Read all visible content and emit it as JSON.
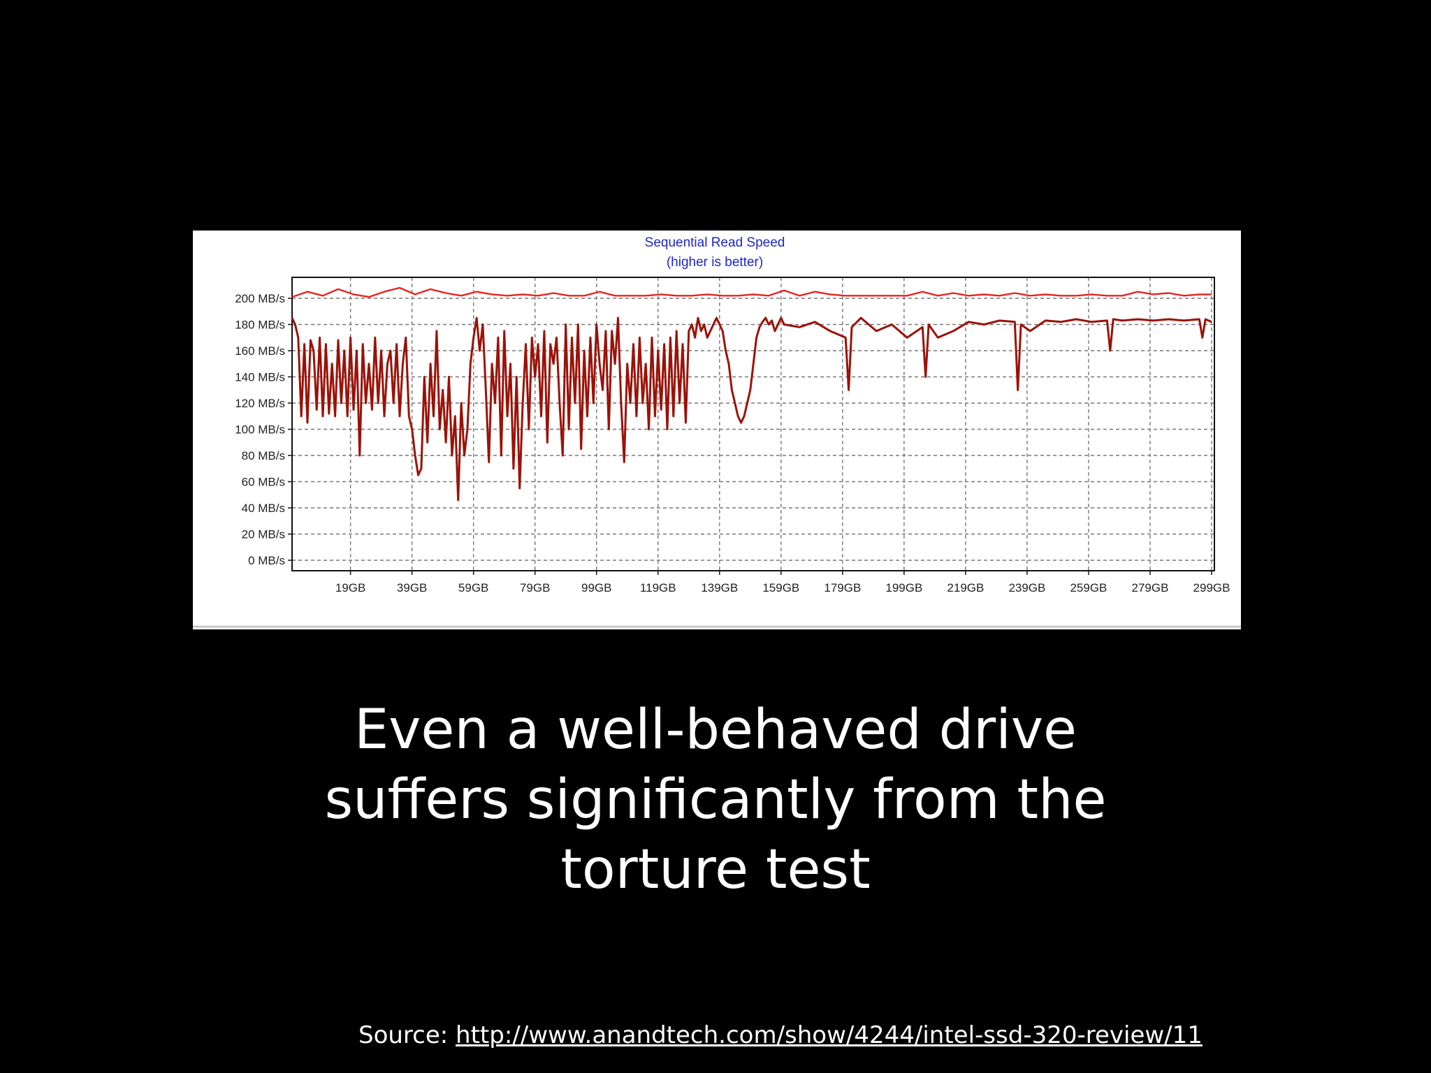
{
  "slide": {
    "caption_lines": [
      "Even a well-behaved drive",
      "suffers significantly from the",
      "torture test"
    ],
    "source_label": "Source: ",
    "source_link": "http://www.anandtech.com/show/4244/intel-ssd-320-review/11"
  },
  "chart_data": {
    "type": "line",
    "title": "Sequential Read Speed",
    "subtitle": "(higher is better)",
    "xlabel": "",
    "ylabel": "",
    "ylim": [
      0,
      200
    ],
    "xlim": [
      0,
      299
    ],
    "grid": true,
    "y_ticks": [
      0,
      20,
      40,
      60,
      80,
      100,
      120,
      140,
      160,
      180,
      200
    ],
    "y_tick_labels": [
      "0 MB/s",
      "20 MB/s",
      "40 MB/s",
      "60 MB/s",
      "80 MB/s",
      "100 MB/s",
      "120 MB/s",
      "140 MB/s",
      "160 MB/s",
      "180 MB/s",
      "200 MB/s"
    ],
    "x_ticks": [
      19,
      39,
      59,
      79,
      99,
      119,
      139,
      159,
      179,
      199,
      219,
      239,
      259,
      279,
      299
    ],
    "x_tick_labels": [
      "19GB",
      "39GB",
      "59GB",
      "79GB",
      "99GB",
      "119GB",
      "139GB",
      "159GB",
      "179GB",
      "199GB",
      "219GB",
      "239GB",
      "259GB",
      "279GB",
      "299GB"
    ],
    "series": [
      {
        "color": "#e8231f",
        "x": [
          0,
          5,
          10,
          15,
          20,
          25,
          30,
          35,
          40,
          45,
          50,
          55,
          60,
          65,
          70,
          75,
          80,
          85,
          90,
          95,
          100,
          105,
          110,
          115,
          120,
          125,
          130,
          135,
          140,
          145,
          150,
          155,
          160,
          165,
          170,
          175,
          180,
          185,
          190,
          195,
          200,
          205,
          210,
          215,
          220,
          225,
          230,
          235,
          240,
          245,
          250,
          255,
          260,
          265,
          270,
          275,
          280,
          285,
          290,
          295,
          299
        ],
        "values": [
          201,
          205,
          202,
          207,
          203,
          201,
          205,
          208,
          203,
          207,
          204,
          202,
          205,
          203,
          202,
          203,
          202,
          204,
          202,
          202,
          205,
          202,
          202,
          202,
          203,
          202,
          202,
          203,
          202,
          202,
          203,
          202,
          206,
          202,
          205,
          203,
          202,
          202,
          202,
          202,
          202,
          205,
          202,
          204,
          202,
          203,
          202,
          204,
          202,
          203,
          202,
          202,
          203,
          202,
          202,
          205,
          203,
          204,
          202,
          203,
          203
        ]
      },
      {
        "color": "#9b1208",
        "x": [
          0,
          1,
          2,
          3,
          4,
          5,
          6,
          7,
          8,
          9,
          10,
          11,
          12,
          13,
          14,
          15,
          16,
          17,
          18,
          19,
          20,
          21,
          22,
          23,
          24,
          25,
          26,
          27,
          28,
          29,
          30,
          31,
          32,
          33,
          34,
          35,
          36,
          37,
          38,
          39,
          40,
          41,
          42,
          43,
          44,
          45,
          46,
          47,
          48,
          49,
          50,
          51,
          52,
          53,
          54,
          55,
          56,
          57,
          58,
          59,
          60,
          61,
          62,
          63,
          64,
          65,
          66,
          67,
          68,
          69,
          70,
          71,
          72,
          73,
          74,
          75,
          76,
          77,
          78,
          79,
          80,
          81,
          82,
          83,
          84,
          85,
          86,
          87,
          88,
          89,
          90,
          91,
          92,
          93,
          94,
          95,
          96,
          97,
          98,
          99,
          100,
          101,
          102,
          103,
          104,
          105,
          106,
          107,
          108,
          109,
          110,
          111,
          112,
          113,
          114,
          115,
          116,
          117,
          118,
          119,
          120,
          121,
          122,
          123,
          124,
          125,
          126,
          127,
          128,
          129,
          130,
          131,
          132,
          133,
          134,
          135,
          136,
          137,
          138,
          139,
          140,
          141,
          142,
          143,
          144,
          145,
          146,
          147,
          148,
          149,
          150,
          151,
          152,
          153,
          154,
          155,
          156,
          157,
          158,
          159,
          160,
          165,
          170,
          175,
          180,
          181,
          182,
          185,
          190,
          195,
          200,
          205,
          206,
          207,
          210,
          215,
          220,
          225,
          230,
          235,
          236,
          237,
          240,
          245,
          250,
          255,
          260,
          265,
          266,
          267,
          270,
          275,
          280,
          285,
          290,
          295,
          296,
          297,
          299
        ],
        "values": [
          185,
          180,
          170,
          110,
          165,
          105,
          168,
          160,
          115,
          170,
          110,
          165,
          112,
          150,
          110,
          168,
          120,
          160,
          110,
          170,
          115,
          160,
          80,
          165,
          120,
          150,
          115,
          170,
          120,
          160,
          110,
          150,
          160,
          120,
          165,
          110,
          150,
          170,
          110,
          100,
          80,
          65,
          70,
          140,
          90,
          150,
          110,
          175,
          100,
          130,
          90,
          140,
          80,
          110,
          46,
          120,
          80,
          100,
          150,
          170,
          185,
          160,
          180,
          130,
          75,
          150,
          120,
          170,
          80,
          175,
          110,
          150,
          70,
          140,
          55,
          120,
          165,
          100,
          170,
          140,
          165,
          110,
          175,
          90,
          165,
          150,
          170,
          120,
          80,
          180,
          100,
          170,
          120,
          180,
          85,
          160,
          110,
          170,
          120,
          180,
          150,
          130,
          175,
          100,
          175,
          150,
          185,
          120,
          75,
          150,
          120,
          165,
          110,
          170,
          120,
          150,
          100,
          170,
          110,
          160,
          115,
          165,
          100,
          170,
          110,
          175,
          120,
          165,
          105,
          175,
          180,
          170,
          185,
          175,
          180,
          170,
          175,
          180,
          185,
          180,
          175,
          160,
          150,
          130,
          120,
          110,
          105,
          110,
          120,
          130,
          150,
          170,
          178,
          182,
          185,
          180,
          183,
          175,
          180,
          185,
          180,
          178,
          182,
          175,
          170,
          130,
          178,
          185,
          175,
          180,
          170,
          178,
          140,
          180,
          170,
          175,
          182,
          180,
          183,
          182,
          130,
          180,
          175,
          183,
          182,
          184,
          182,
          183,
          160,
          184,
          183,
          184,
          183,
          184,
          183,
          184,
          170,
          184,
          182
        ]
      }
    ]
  }
}
